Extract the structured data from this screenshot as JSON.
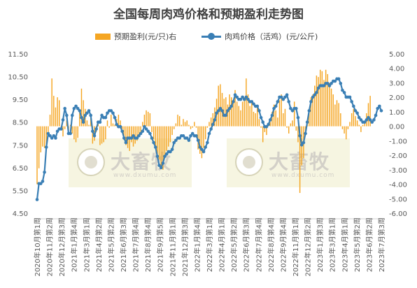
{
  "colors": {
    "bar": "#F5A623",
    "line": "#3A7FB5",
    "axis_text": "#595959",
    "text": "#404040"
  },
  "watermark": {
    "brand": "大畜牧",
    "url": "www.dxumu.com"
  },
  "chart_data": {
    "type": "bar+line",
    "title": "全国每周肉鸡价格和预期盈利走势图",
    "legend_position": "top",
    "grid": false,
    "x_tick_labels": [
      "2020年10月第1周",
      "2020年11月第2周",
      "2020年12月第3周",
      "2021年1月第4周",
      "2021年3月第1周",
      "2021年4月第2周",
      "2021年5月第2周",
      "2021年6月第3周",
      "2021年7月第4周",
      "2021年8月第4周",
      "2021年9月第5周",
      "2021年11月第1周",
      "2021年12月第3周",
      "2022年1月第4周",
      "2022年3月第1周",
      "2022年4月第1周",
      "2022年5月第2周",
      "2022年6月第3周",
      "2022年7月第4周",
      "2022年8月第4周",
      "2022年9月第4周",
      "2022年11月第1周",
      "2022年12月第2周",
      "2023年1月第3周",
      "2023年3月第1周",
      "2023年4月第1周",
      "2023年5月第2周",
      "2023年6月第2周",
      "2023年7月第3周"
    ],
    "y_left": {
      "min": 4.5,
      "max": 11.5,
      "ticks": [
        "4.50",
        "5.50",
        "6.50",
        "7.50",
        "8.50",
        "9.50",
        "10.50",
        "11.50"
      ]
    },
    "y_right": {
      "min": -6,
      "max": 5,
      "ticks": [
        "-6.00",
        "-5.00",
        "-4.00",
        "-3.00",
        "-2.00",
        "-1.00",
        "0.00",
        "1.00",
        "2.00",
        "3.00",
        "4.00",
        "5.00"
      ]
    },
    "series": [
      {
        "name": "预期盈利(元/只)右",
        "type": "bar",
        "axis": "right",
        "values": [
          -4.0,
          -2.9,
          -1.8,
          -1.4,
          -1.5,
          -1.3,
          -0.4,
          0.8,
          3.3,
          2.1,
          1.3,
          2.0,
          1.8,
          -0.1,
          -0.7,
          -0.2,
          0.4,
          -0.3,
          0.1,
          -0.5,
          -0.9,
          -1.1,
          -0.8,
          1.1,
          2.6,
          1.8,
          1.2,
          0.4,
          0.1,
          0.6,
          -1.2,
          -1.0,
          -0.4,
          0.3,
          -1.3,
          -1.2,
          -1.1,
          -0.9,
          0.4,
          -0.1,
          0.8,
          0.2,
          0.1,
          0.5,
          0.8,
          0.4,
          -0.2,
          -0.9,
          -1.3,
          -1.5,
          -1.7,
          -1.1,
          -1.4,
          -1.2,
          -1.0,
          -0.6,
          -0.5,
          0.3,
          0.8,
          1.1,
          1.0,
          0.9,
          -0.4,
          -0.9,
          -1.5,
          -1.9,
          -2.3,
          -2.8,
          -3.0,
          -2.1,
          -1.7,
          -1.4,
          -1.1,
          -0.6,
          -0.2,
          0.2,
          0.8,
          0.7,
          0.1,
          0.5,
          0.3,
          0.4,
          0.1,
          -0.2,
          -0.1,
          0.3,
          -0.1,
          -1.6,
          -1.9,
          -2.2,
          -1.5,
          -0.9,
          -0.1,
          0.3,
          0.6,
          0.9,
          1.3,
          1.9,
          2.8,
          2.9,
          2.3,
          1.9,
          2.0,
          1.5,
          2.2,
          2.0,
          1.6,
          2.5,
          1.7,
          1.4,
          1.1,
          1.7,
          2.0,
          3.3,
          2.2,
          1.4,
          1.7,
          1.0,
          0.9,
          1.3,
          0.5,
          -0.1,
          -1.1,
          -0.4,
          -0.6,
          0.1,
          0.3,
          1.0,
          1.5,
          1.1,
          0.6,
          1.8,
          2.2,
          0.9,
          1.2,
          -0.1,
          -0.5,
          0.2,
          0.4,
          1.7,
          -0.3,
          -1.1,
          -4.6,
          -2.7,
          -2.2,
          -0.6,
          0.2,
          1.1,
          2.0,
          2.2,
          2.8,
          3.5,
          3.4,
          3.9,
          3.8,
          3.2,
          3.9,
          3.6,
          3.0,
          2.6,
          2.2,
          1.5,
          1.8,
          1.6,
          0.9,
          -0.2,
          -0.5,
          -0.9,
          -0.2,
          0.3,
          0.9,
          1.2,
          0.7,
          0.4,
          0.1,
          -0.4,
          0.1,
          0.3,
          0.9,
          1.6,
          2.1
        ]
      },
      {
        "name": "肉鸡价格（活鸡）(元/公斤)",
        "type": "line",
        "axis": "left",
        "values": [
          5.1,
          5.8,
          5.8,
          5.9,
          6.3,
          7.4,
          8.0,
          7.9,
          7.8,
          7.9,
          7.8,
          8.1,
          8.2,
          8.2,
          8.6,
          9.1,
          8.8,
          8.0,
          8.0,
          8.8,
          9.1,
          9.2,
          9.1,
          9.0,
          8.7,
          8.5,
          8.8,
          8.9,
          9.0,
          8.8,
          8.1,
          7.9,
          8.2,
          8.5,
          8.5,
          8.8,
          8.7,
          8.7,
          8.9,
          9.0,
          9.0,
          8.9,
          8.7,
          8.4,
          8.3,
          8.3,
          8.1,
          7.8,
          7.6,
          7.8,
          7.8,
          7.8,
          7.9,
          7.8,
          7.8,
          7.9,
          8.0,
          8.1,
          8.3,
          8.2,
          8.1,
          8.0,
          7.8,
          7.6,
          7.4,
          7.0,
          6.6,
          6.5,
          6.7,
          7.0,
          7.1,
          7.2,
          7.2,
          7.3,
          7.6,
          7.7,
          7.8,
          7.8,
          7.9,
          7.9,
          7.8,
          7.8,
          7.7,
          7.9,
          8.0,
          7.9,
          7.9,
          7.7,
          7.4,
          7.3,
          7.2,
          7.4,
          7.6,
          8.0,
          8.2,
          8.4,
          8.6,
          8.9,
          9.0,
          9.1,
          9.0,
          8.8,
          8.8,
          9.0,
          9.1,
          9.2,
          9.4,
          9.7,
          9.6,
          9.5,
          9.5,
          9.6,
          9.5,
          9.6,
          9.5,
          9.4,
          9.4,
          9.3,
          9.2,
          9.2,
          9.0,
          8.7,
          8.5,
          8.3,
          8.3,
          8.4,
          8.6,
          8.8,
          9.1,
          9.2,
          9.4,
          9.6,
          9.6,
          9.5,
          9.6,
          9.7,
          9.4,
          9.1,
          9.0,
          9.1,
          9.1,
          8.7,
          7.9,
          7.5,
          7.6,
          8.0,
          8.5,
          9.0,
          9.4,
          9.6,
          9.7,
          9.8,
          10.0,
          10.1,
          10.1,
          10.1,
          10.2,
          10.2,
          10.1,
          10.2,
          10.3,
          10.3,
          10.4,
          10.4,
          10.2,
          9.9,
          9.8,
          9.6,
          9.6,
          9.6,
          9.4,
          9.2,
          9.0,
          8.9,
          8.7,
          8.6,
          8.5,
          8.5,
          8.6,
          8.7,
          8.6,
          8.5,
          8.6,
          8.8,
          9.1,
          9.2,
          9.0
        ]
      }
    ]
  }
}
